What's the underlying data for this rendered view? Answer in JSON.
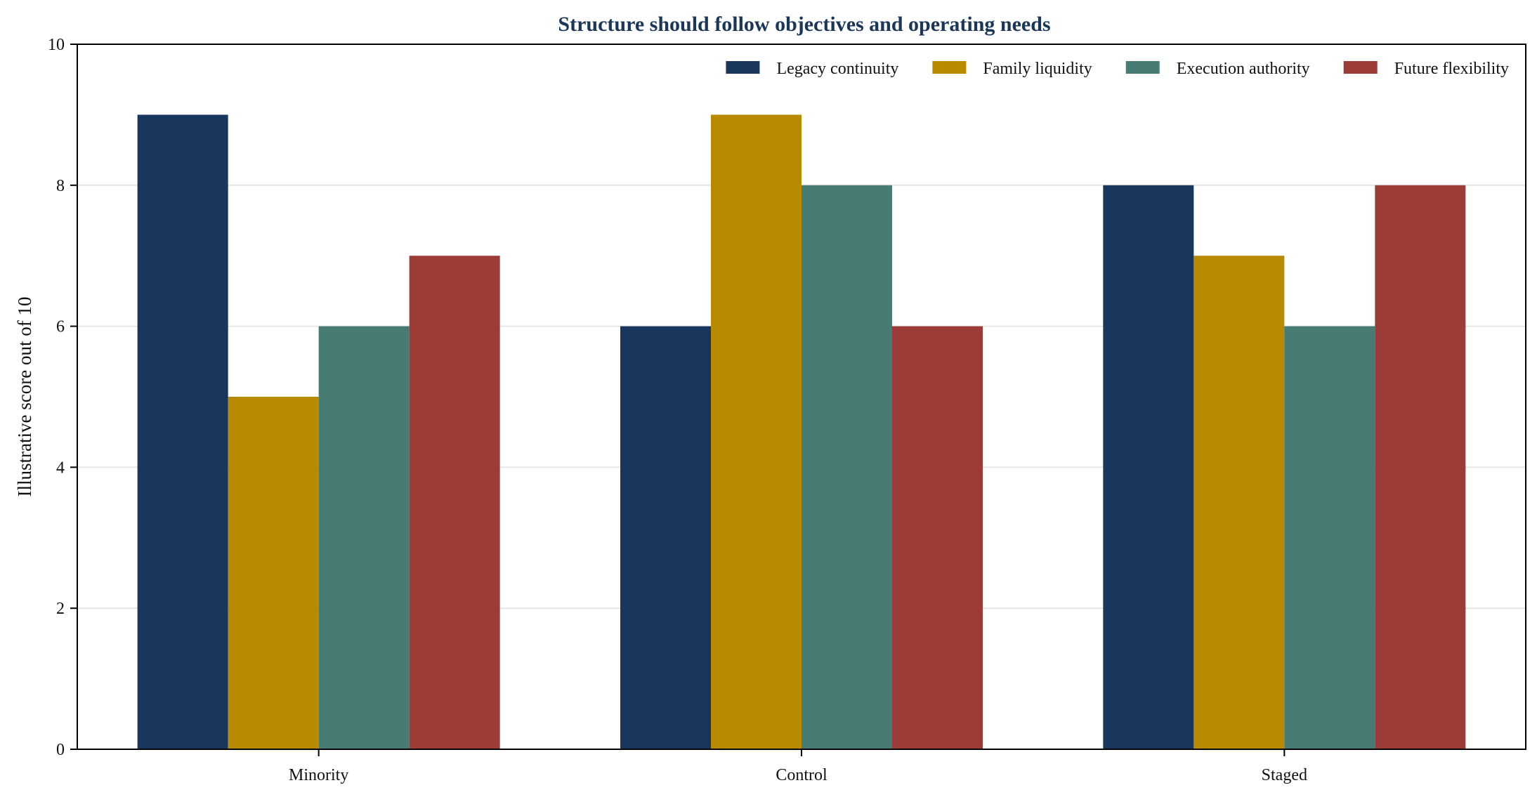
{
  "chart_data": {
    "type": "bar",
    "title": "Structure should follow objectives and operating needs",
    "xlabel": "",
    "ylabel": "Illustrative score out of 10",
    "categories": [
      "Minority",
      "Control",
      "Staged"
    ],
    "series": [
      {
        "name": "Legacy continuity",
        "color": "#19365d",
        "values": [
          9,
          6,
          8
        ]
      },
      {
        "name": "Family liquidity",
        "color": "#b78a00",
        "values": [
          5,
          9,
          7
        ]
      },
      {
        "name": "Execution authority",
        "color": "#477c74",
        "values": [
          6,
          8,
          6
        ]
      },
      {
        "name": "Future flexibility",
        "color": "#9c3c36",
        "values": [
          7,
          6,
          8
        ]
      }
    ],
    "ylim": [
      0,
      10
    ],
    "yticks": [
      0,
      2,
      4,
      6,
      8,
      10
    ],
    "grid": "horizontal",
    "legend_position": "top-right",
    "title_color": "#1a3659"
  }
}
